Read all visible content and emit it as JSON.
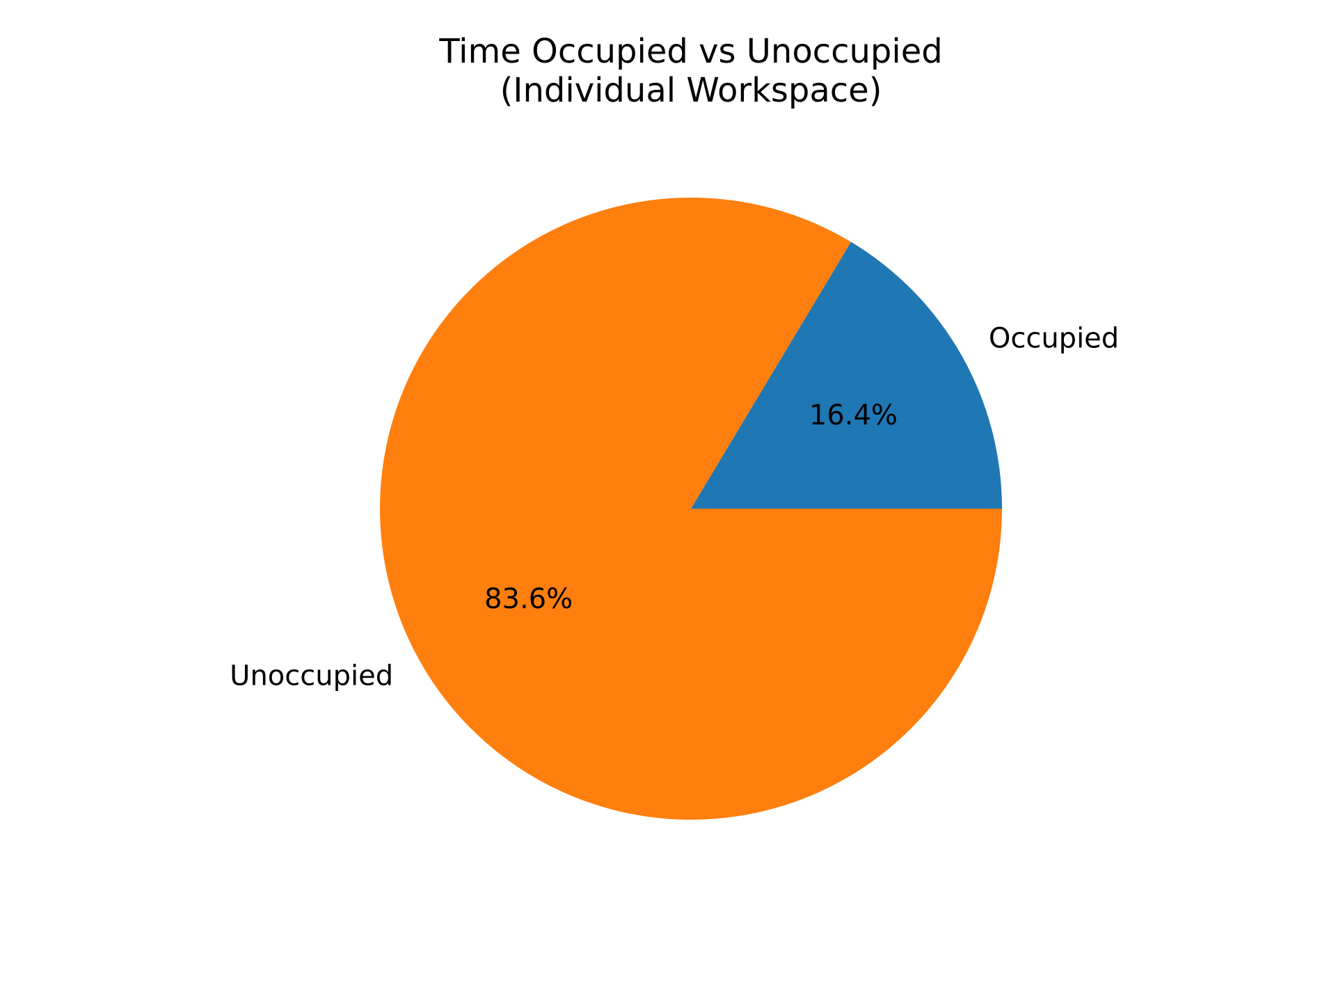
{
  "chart_data": {
    "type": "pie",
    "title": "Time Occupied vs Unoccupied",
    "subtitle": "(Individual Workspace)",
    "start_angle": 0,
    "direction": "counterclockwise",
    "slices": [
      {
        "label": "Occupied",
        "value": 16.4,
        "pct_label": "16.4%",
        "color": "#1f77b4"
      },
      {
        "label": "Unoccupied",
        "value": 83.6,
        "pct_label": "83.6%",
        "color": "#ff7f0e"
      }
    ]
  }
}
